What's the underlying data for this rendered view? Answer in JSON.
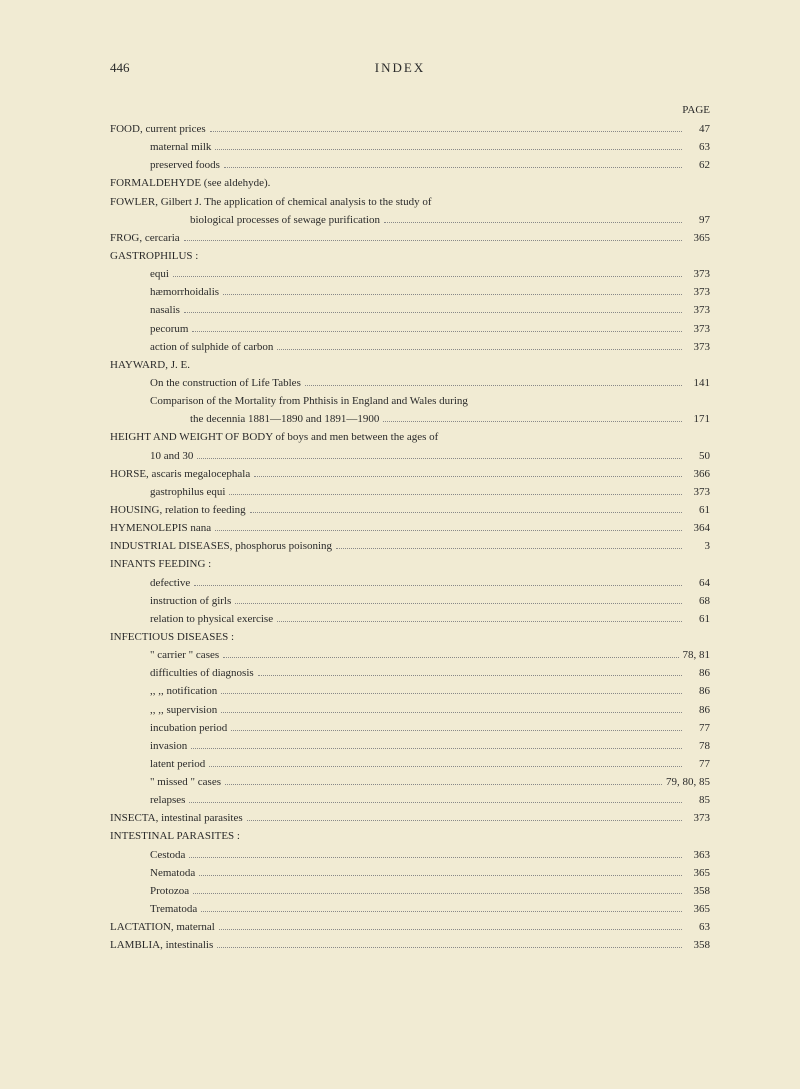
{
  "header": {
    "pageNumber": "446",
    "title": "INDEX",
    "columnLabel": "PAGE"
  },
  "entries": [
    {
      "text": "FOOD, current prices",
      "page": "47",
      "indent": 0
    },
    {
      "text": "maternal milk",
      "page": "63",
      "indent": 1
    },
    {
      "text": "preserved foods",
      "page": "62",
      "indent": 1
    },
    {
      "text": "FORMALDEHYDE (see aldehyde).",
      "page": "",
      "indent": 0,
      "noPage": true
    },
    {
      "text": "FOWLER, Gilbert J.  The application of chemical analysis to the study of",
      "page": "",
      "indent": 0,
      "noPage": true
    },
    {
      "text": "biological processes of sewage purification",
      "page": "97",
      "indent": 2
    },
    {
      "text": "FROG, cercaria",
      "page": "365",
      "indent": 0
    },
    {
      "text": "GASTROPHILUS :",
      "page": "",
      "indent": 0,
      "noPage": true
    },
    {
      "text": "equi",
      "page": "373",
      "indent": 1
    },
    {
      "text": "hæmorrhoidalis",
      "page": "373",
      "indent": 1
    },
    {
      "text": "nasalis",
      "page": "373",
      "indent": 1
    },
    {
      "text": "pecorum",
      "page": "373",
      "indent": 1
    },
    {
      "text": "action of sulphide of carbon",
      "page": "373",
      "indent": 1
    },
    {
      "text": "HAYWARD, J. E.",
      "page": "",
      "indent": 0,
      "noPage": true
    },
    {
      "text": "On the construction of Life Tables",
      "page": "141",
      "indent": 1
    },
    {
      "text": "Comparison of the Mortality from Phthisis in England and Wales during",
      "page": "",
      "indent": 1,
      "noPage": true
    },
    {
      "text": "the decennia 1881—1890 and 1891—1900",
      "page": "171",
      "indent": 2
    },
    {
      "text": "HEIGHT AND WEIGHT OF BODY of boys and men between the ages of",
      "page": "",
      "indent": 0,
      "noPage": true
    },
    {
      "text": "10 and 30",
      "page": "50",
      "indent": 1
    },
    {
      "text": "HORSE, ascaris megalocephala",
      "page": "366",
      "indent": 0
    },
    {
      "text": "gastrophilus equi",
      "page": "373",
      "indent": 1
    },
    {
      "text": "HOUSING, relation to feeding",
      "page": "61",
      "indent": 0
    },
    {
      "text": "HYMENOLEPIS   nana",
      "page": "364",
      "indent": 0
    },
    {
      "text": "INDUSTRIAL DISEASES, phosphorus poisoning",
      "page": "3",
      "indent": 0
    },
    {
      "text": "INFANTS FEEDING :",
      "page": "",
      "indent": 0,
      "noPage": true
    },
    {
      "text": "defective",
      "page": "64",
      "indent": 1
    },
    {
      "text": "instruction of girls",
      "page": "68",
      "indent": 1
    },
    {
      "text": "relation to physical exercise",
      "page": "61",
      "indent": 1
    },
    {
      "text": "INFECTIOUS DISEASES :",
      "page": "",
      "indent": 0,
      "noPage": true
    },
    {
      "text": "\" carrier \"  cases",
      "page": "78,  81",
      "indent": 1
    },
    {
      "text": "difficulties of diagnosis",
      "page": "86",
      "indent": 1
    },
    {
      "text": ",,        ,,  notification",
      "page": "86",
      "indent": 1
    },
    {
      "text": ",,        ,,  supervision",
      "page": "86",
      "indent": 1
    },
    {
      "text": "incubation period",
      "page": "77",
      "indent": 1
    },
    {
      "text": "invasion",
      "page": "78",
      "indent": 1
    },
    {
      "text": "latent period",
      "page": "77",
      "indent": 1
    },
    {
      "text": "\" missed \" cases",
      "page": "79, 80,  85",
      "indent": 1
    },
    {
      "text": "relapses",
      "page": "85",
      "indent": 1
    },
    {
      "text": "INSECTA, intestinal parasites",
      "page": "373",
      "indent": 0
    },
    {
      "text": "INTESTINAL PARASITES :",
      "page": "",
      "indent": 0,
      "noPage": true
    },
    {
      "text": "Cestoda",
      "page": "363",
      "indent": 1
    },
    {
      "text": "Nematoda",
      "page": "365",
      "indent": 1
    },
    {
      "text": "Protozoa",
      "page": "358",
      "indent": 1
    },
    {
      "text": "Trematoda",
      "page": "365",
      "indent": 1
    },
    {
      "text": "LACTATION, maternal",
      "page": "63",
      "indent": 0
    },
    {
      "text": "LAMBLIA, intestinalis",
      "page": "358",
      "indent": 0
    }
  ]
}
